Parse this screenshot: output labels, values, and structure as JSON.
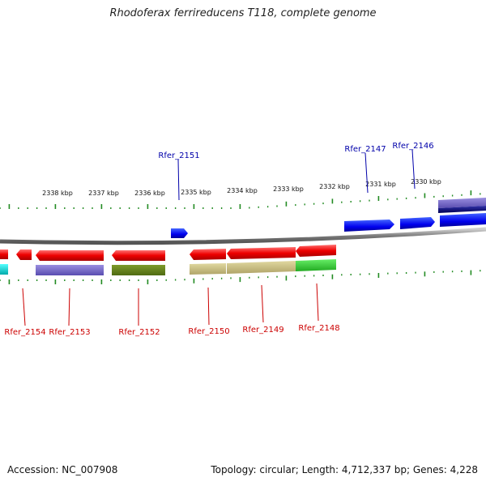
{
  "title": "Rhodoferax ferrireducens T118, complete genome",
  "footer": {
    "accession": "Accession: NC_007908",
    "summary": "Topology: circular; Length: 4,712,337 bp; Genes: 4,228"
  },
  "colors": {
    "forward_gene": "#0000ee",
    "reverse_gene": "#ee0000",
    "forward_label": "#0000aa",
    "reverse_label": "#cc0000",
    "tick": "#228b22",
    "backbone": "#888888"
  },
  "scale": {
    "unit": "kbp",
    "labels": [
      "2338 kbp",
      "2337 kbp",
      "2336 kbp",
      "2335 kbp",
      "2334 kbp",
      "2333 kbp",
      "2332 kbp",
      "2331 kbp",
      "2330 kbp"
    ]
  },
  "forward_genes": [
    {
      "label": "Rfer_2151"
    },
    {
      "label": "Rfer_2147"
    },
    {
      "label": "Rfer_2146"
    }
  ],
  "reverse_genes": [
    {
      "label": "Rfer_2154"
    },
    {
      "label": "Rfer_2153"
    },
    {
      "label": "Rfer_2152"
    },
    {
      "label": "Rfer_2150"
    },
    {
      "label": "Rfer_2149"
    },
    {
      "label": "Rfer_2148"
    }
  ]
}
